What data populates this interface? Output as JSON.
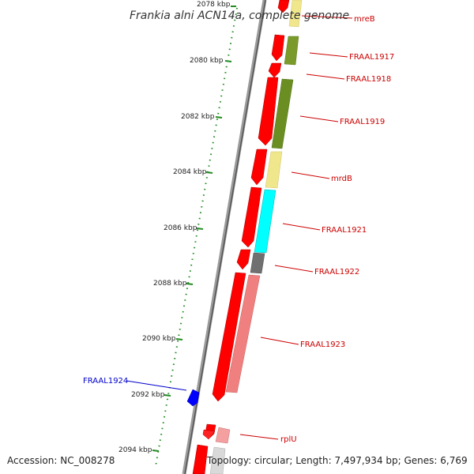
{
  "title": "Frankia alni ACN14a, complete genome",
  "footer": {
    "accession": "Accession: NC_008278",
    "topology": "Topology: circular; Length: 7,497,934 bp; Genes: 6,769"
  },
  "ticks": [
    "2078 kbp",
    "2080 kbp",
    "2082 kbp",
    "2084 kbp",
    "2086 kbp",
    "2088 kbp",
    "2090 kbp",
    "2092 kbp",
    "2094 kbp"
  ],
  "gene_labels": [
    {
      "label": "mreB"
    },
    {
      "label": "FRAAL1917"
    },
    {
      "label": "FRAAL1918"
    },
    {
      "label": "FRAAL1919"
    },
    {
      "label": "mrdB"
    },
    {
      "label": "FRAAL1921"
    },
    {
      "label": "FRAAL1922"
    },
    {
      "label": "FRAAL1923"
    },
    {
      "label": "FRAAL1924"
    },
    {
      "label": "rplU"
    }
  ],
  "colors": {
    "forward_strand": "#ff0000",
    "backbone": "#808080",
    "scale_dots": "#228b22",
    "label_red": "#cc0000",
    "label_blue": "#0000cc",
    "gene_blue": "#0000ff"
  }
}
